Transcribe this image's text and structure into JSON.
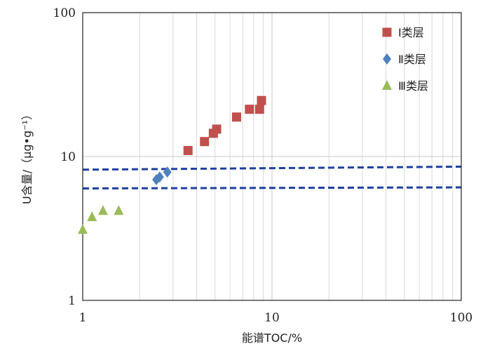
{
  "chart_data": {
    "type": "scatter",
    "xlabel": "能谱TOC/%",
    "ylabel": "U含量/（μg•g⁻¹）",
    "x_scale": "log",
    "y_scale": "log",
    "xlim": [
      1,
      100
    ],
    "ylim": [
      1,
      100
    ],
    "x_ticks": [
      "1",
      "10",
      "100"
    ],
    "y_ticks": [
      "1",
      "10",
      "100"
    ],
    "grid": true,
    "legend_position": "top-right",
    "series": [
      {
        "name": "Ⅰ类层",
        "marker": "square",
        "color": "#c0504d",
        "points": [
          [
            3.6,
            11.0
          ],
          [
            4.4,
            12.7
          ],
          [
            4.9,
            14.5
          ],
          [
            5.1,
            15.5
          ],
          [
            6.5,
            18.8
          ],
          [
            7.6,
            21.3
          ],
          [
            8.6,
            21.3
          ],
          [
            8.8,
            24.5
          ]
        ]
      },
      {
        "name": "Ⅱ类层",
        "marker": "diamond",
        "color": "#4f81bd",
        "points": [
          [
            2.45,
            6.9
          ],
          [
            2.55,
            7.2
          ],
          [
            2.8,
            7.8
          ]
        ]
      },
      {
        "name": "Ⅲ类层",
        "marker": "triangle",
        "color": "#9bbb59",
        "points": [
          [
            1.0,
            3.1
          ],
          [
            1.12,
            3.8
          ],
          [
            1.28,
            4.2
          ],
          [
            1.55,
            4.2
          ]
        ]
      }
    ],
    "reference_lines": [
      {
        "y_start": 8.1,
        "y_end": 8.5,
        "style": "dashed",
        "color": "#1f3fa0"
      },
      {
        "y_start": 6.0,
        "y_end": 6.1,
        "style": "dashed",
        "color": "#1f3fa0"
      }
    ]
  }
}
